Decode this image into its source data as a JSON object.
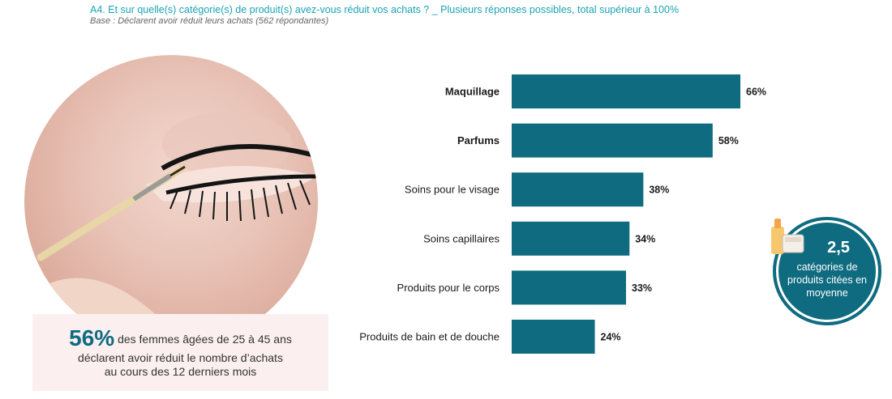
{
  "header": {
    "question": "A4. Et sur quelle(s) catégorie(s) de produit(s) avez-vous réduit vos achats ? _ Plusieurs réponses possibles, total supérieur à 100%",
    "base": "Base : Déclarent avoir réduit leurs achats (562 répondantes)"
  },
  "stat": {
    "pct": "56%",
    "line1": "des femmes âgées de 25 à 45 ans",
    "line2": "déclarent avoir réduit le nombre d’achats",
    "line3": "au cours des 12 derniers mois"
  },
  "badge": {
    "value": "2,5",
    "text": "catégories de produits citées en moyenne",
    "icon": "cosmetics-products-icon"
  },
  "colors": {
    "bar": "#0f6b80",
    "accent": "#1ba3b3"
  },
  "chart_data": {
    "type": "bar",
    "orientation": "horizontal",
    "categories": [
      "Maquillage",
      "Parfums",
      "Soins pour le visage",
      "Soins capillaires",
      "Produits pour le corps",
      "Produits de bain et de douche"
    ],
    "values": [
      66,
      58,
      38,
      34,
      33,
      24
    ],
    "value_labels": [
      "66%",
      "58%",
      "38%",
      "34%",
      "33%",
      "24%"
    ],
    "highlighted": [
      "Maquillage",
      "Parfums"
    ],
    "xlim": [
      0,
      66
    ],
    "grid": false
  }
}
